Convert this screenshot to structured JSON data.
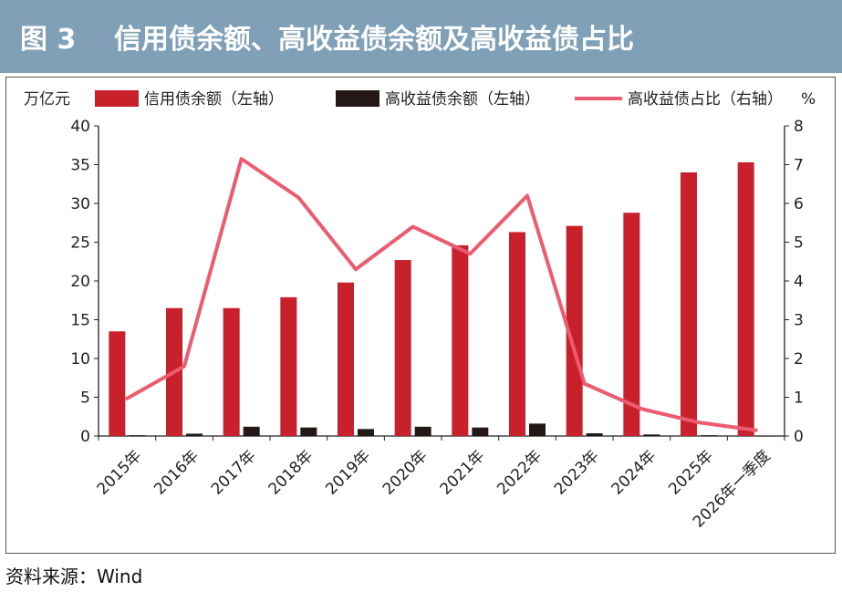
{
  "header": {
    "figure_label": "图 3",
    "title": "信用债余额、高收益债余额及高收益债占比"
  },
  "source": "资料来源：Wind",
  "colors": {
    "header_bg": "#7fa0b6",
    "credit": "#c8212b",
    "high_yield": "#231815",
    "share": "#ec5b6f"
  },
  "chart_data": {
    "type": "bar",
    "title": "信用债余额、高收益债余额及高收益债占比",
    "left_unit": "万亿元",
    "right_unit": "%",
    "categories": [
      "2015年",
      "2016年",
      "2017年",
      "2018年",
      "2019年",
      "2020年",
      "2021年",
      "2022年",
      "2023年",
      "2024年",
      "2025年",
      "2026年一季度"
    ],
    "y_left": {
      "min": 0,
      "max": 40,
      "step": 5,
      "ticks": [
        "0",
        "5",
        "10",
        "15",
        "20",
        "25",
        "30",
        "35",
        "40"
      ]
    },
    "y_right": {
      "min": 0,
      "max": 8,
      "step": 1,
      "ticks": [
        "0",
        "1",
        "2",
        "3",
        "4",
        "5",
        "6",
        "7",
        "8"
      ]
    },
    "legend_position": "top",
    "grid": false,
    "series": [
      {
        "name": "信用债余额（左轴）",
        "type": "bar",
        "axis": "left",
        "color": "#c8212b",
        "values": [
          13.5,
          16.5,
          16.5,
          17.9,
          19.8,
          22.7,
          24.6,
          26.3,
          27.1,
          28.8,
          34.0,
          35.3
        ]
      },
      {
        "name": "高收益债余额（左轴）",
        "type": "bar",
        "axis": "left",
        "color": "#231815",
        "values": [
          0.1,
          0.3,
          1.2,
          1.1,
          0.9,
          1.2,
          1.1,
          1.6,
          0.35,
          0.2,
          0.1,
          0.05
        ]
      },
      {
        "name": "高收益债占比（右轴）",
        "type": "line",
        "axis": "right",
        "color": "#ec5b6f",
        "values": [
          0.97,
          1.8,
          7.15,
          6.15,
          4.3,
          5.4,
          4.7,
          6.2,
          1.35,
          0.7,
          0.35,
          0.15
        ]
      }
    ]
  }
}
